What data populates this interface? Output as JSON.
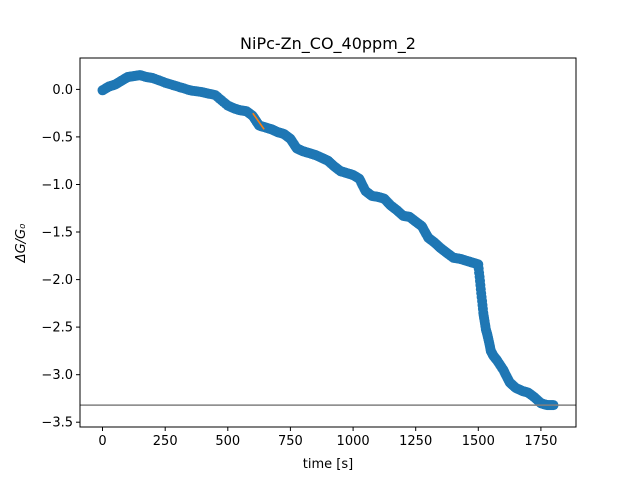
{
  "chart_data": {
    "type": "scatter",
    "title": "NiPc-Zn_CO_40ppm_2",
    "xlabel": "time [s]",
    "ylabel": "ΔG/G₀",
    "xlim": [
      -90,
      1890
    ],
    "ylim": [
      -3.55,
      0.33
    ],
    "xticks": [
      0,
      250,
      500,
      750,
      1000,
      1250,
      1500,
      1750
    ],
    "yticks": [
      0.0,
      -0.5,
      -1.0,
      -1.5,
      -2.0,
      -2.5,
      -3.0,
      -3.5
    ],
    "ytick_labels": [
      "0.0",
      "−0.5",
      "−1.0",
      "−1.5",
      "−2.0",
      "−2.5",
      "−3.0",
      "−3.5"
    ],
    "grid": false,
    "series": [
      {
        "marker": "circle",
        "color": "#1f77b4",
        "x": [
          0,
          25,
          50,
          75,
          100,
          125,
          150,
          175,
          200,
          250,
          300,
          350,
          400,
          450,
          500,
          525,
          550,
          575,
          600,
          625,
          650,
          675,
          700,
          725,
          750,
          775,
          800,
          825,
          850,
          875,
          900,
          925,
          950,
          975,
          1000,
          1025,
          1050,
          1075,
          1100,
          1125,
          1150,
          1175,
          1200,
          1225,
          1250,
          1275,
          1300,
          1325,
          1350,
          1375,
          1400,
          1425,
          1450,
          1475,
          1500,
          1510,
          1520,
          1530,
          1540,
          1550,
          1560,
          1575,
          1600,
          1625,
          1650,
          1675,
          1700,
          1725,
          1750,
          1775,
          1800
        ],
        "y": [
          -0.01,
          0.03,
          0.05,
          0.09,
          0.13,
          0.14,
          0.15,
          0.13,
          0.12,
          0.07,
          0.03,
          -0.01,
          -0.03,
          -0.06,
          -0.17,
          -0.2,
          -0.22,
          -0.23,
          -0.28,
          -0.38,
          -0.4,
          -0.42,
          -0.45,
          -0.47,
          -0.52,
          -0.62,
          -0.65,
          -0.67,
          -0.69,
          -0.72,
          -0.75,
          -0.81,
          -0.86,
          -0.88,
          -0.9,
          -0.94,
          -1.07,
          -1.12,
          -1.13,
          -1.15,
          -1.22,
          -1.27,
          -1.33,
          -1.34,
          -1.39,
          -1.44,
          -1.56,
          -1.61,
          -1.67,
          -1.72,
          -1.77,
          -1.78,
          -1.8,
          -1.82,
          -1.84,
          -2.1,
          -2.35,
          -2.52,
          -2.62,
          -2.75,
          -2.8,
          -2.85,
          -2.95,
          -3.08,
          -3.14,
          -3.17,
          -3.19,
          -3.24,
          -3.3,
          -3.32,
          -3.32
        ]
      },
      {
        "type": "line",
        "color": "#ff7f0e",
        "x": [
          600,
          645
        ],
        "y": [
          -0.25,
          -0.42
        ]
      }
    ],
    "hline": {
      "y": -3.32,
      "color": "#808080"
    }
  }
}
